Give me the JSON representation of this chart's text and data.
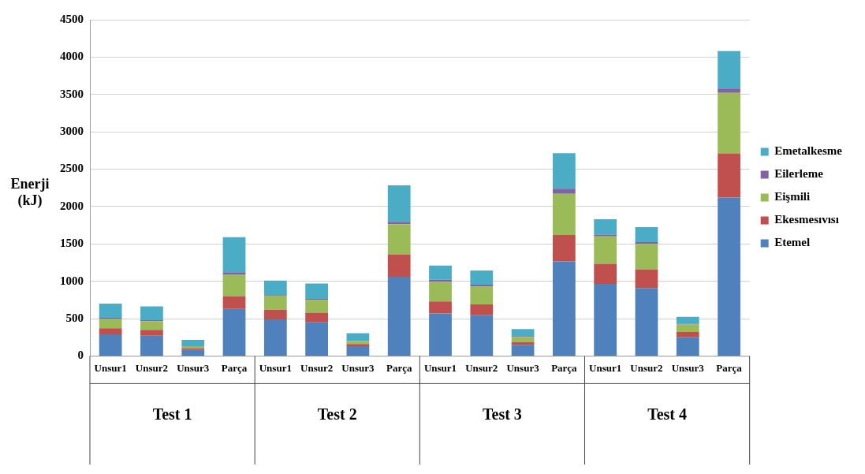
{
  "chart_data": {
    "type": "bar",
    "stacked": true,
    "ylabel": "Enerji (kJ)",
    "categories": [
      "Unsur1",
      "Unsur2",
      "Unsur3",
      "Parça",
      "Unsur1",
      "Unsur2",
      "Unsur3",
      "Parça",
      "Unsur1",
      "Unsur2",
      "Unsur3",
      "Parça",
      "Unsur1",
      "Unsur2",
      "Unsur3",
      "Parça"
    ],
    "series": [
      {
        "name": "Etemel",
        "color": "#4f81bd",
        "values": [
          290,
          270,
          80,
          630,
          490,
          450,
          130,
          1060,
          570,
          545,
          150,
          1265,
          965,
          910,
          250,
          2120
        ]
      },
      {
        "name": "Ekesmesıvısı",
        "color": "#c0504d",
        "values": [
          80,
          80,
          25,
          170,
          130,
          130,
          30,
          300,
          160,
          145,
          35,
          355,
          270,
          250,
          70,
          590
        ]
      },
      {
        "name": "Eişmili",
        "color": "#9bbb59",
        "values": [
          125,
          115,
          25,
          285,
          185,
          170,
          40,
          405,
          260,
          240,
          70,
          550,
          365,
          340,
          100,
          810
        ]
      },
      {
        "name": "Eilerleme",
        "color": "#8064a2",
        "values": [
          15,
          15,
          null,
          35,
          10,
          15,
          null,
          30,
          30,
          25,
          10,
          70,
          25,
          25,
          10,
          60
        ]
      },
      {
        "name": "Emetalkesme",
        "color": "#4bacc6",
        "values": [
          190,
          185,
          85,
          470,
          195,
          205,
          105,
          490,
          190,
          190,
          95,
          475,
          205,
          200,
          95,
          500
        ]
      }
    ],
    "annotations": [
      "Test 1",
      "Test 2",
      "Test 3",
      "Test 4"
    ],
    "ylim": [
      0,
      4500
    ],
    "yticks": [
      0,
      500,
      1000,
      1500,
      2000,
      2500,
      3000,
      3500,
      4000,
      4500
    ],
    "grid": "y",
    "legend": "right"
  }
}
